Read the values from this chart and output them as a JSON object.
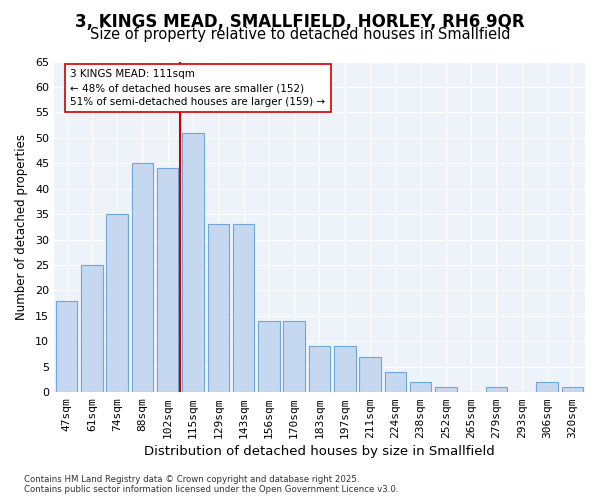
{
  "title": "3, KINGS MEAD, SMALLFIELD, HORLEY, RH6 9QR",
  "subtitle": "Size of property relative to detached houses in Smallfield",
  "xlabel": "Distribution of detached houses by size in Smallfield",
  "ylabel": "Number of detached properties",
  "categories": [
    "47sqm",
    "61sqm",
    "74sqm",
    "88sqm",
    "102sqm",
    "115sqm",
    "129sqm",
    "143sqm",
    "156sqm",
    "170sqm",
    "183sqm",
    "197sqm",
    "211sqm",
    "224sqm",
    "238sqm",
    "252sqm",
    "265sqm",
    "279sqm",
    "293sqm",
    "306sqm",
    "320sqm"
  ],
  "values": [
    18,
    25,
    35,
    45,
    44,
    51,
    33,
    33,
    14,
    14,
    9,
    9,
    7,
    4,
    2,
    1,
    0,
    1,
    0,
    2,
    1
  ],
  "bar_color": "#c5d8f0",
  "bar_edgecolor": "#6fa8d6",
  "vline_x": 4.5,
  "vline_color": "#cc0000",
  "annotation_text": "3 KINGS MEAD: 111sqm\n← 48% of detached houses are smaller (152)\n51% of semi-detached houses are larger (159) →",
  "annotation_box_edgecolor": "#cc0000",
  "annotation_box_facecolor": "#ffffff",
  "ylim": [
    0,
    65
  ],
  "yticks": [
    0,
    5,
    10,
    15,
    20,
    25,
    30,
    35,
    40,
    45,
    50,
    55,
    60,
    65
  ],
  "background_color": "#eef2f9",
  "footer_text": "Contains HM Land Registry data © Crown copyright and database right 2025.\nContains public sector information licensed under the Open Government Licence v3.0.",
  "title_fontsize": 12,
  "subtitle_fontsize": 10.5,
  "xlabel_fontsize": 9.5,
  "ylabel_fontsize": 8.5,
  "tick_fontsize": 8
}
